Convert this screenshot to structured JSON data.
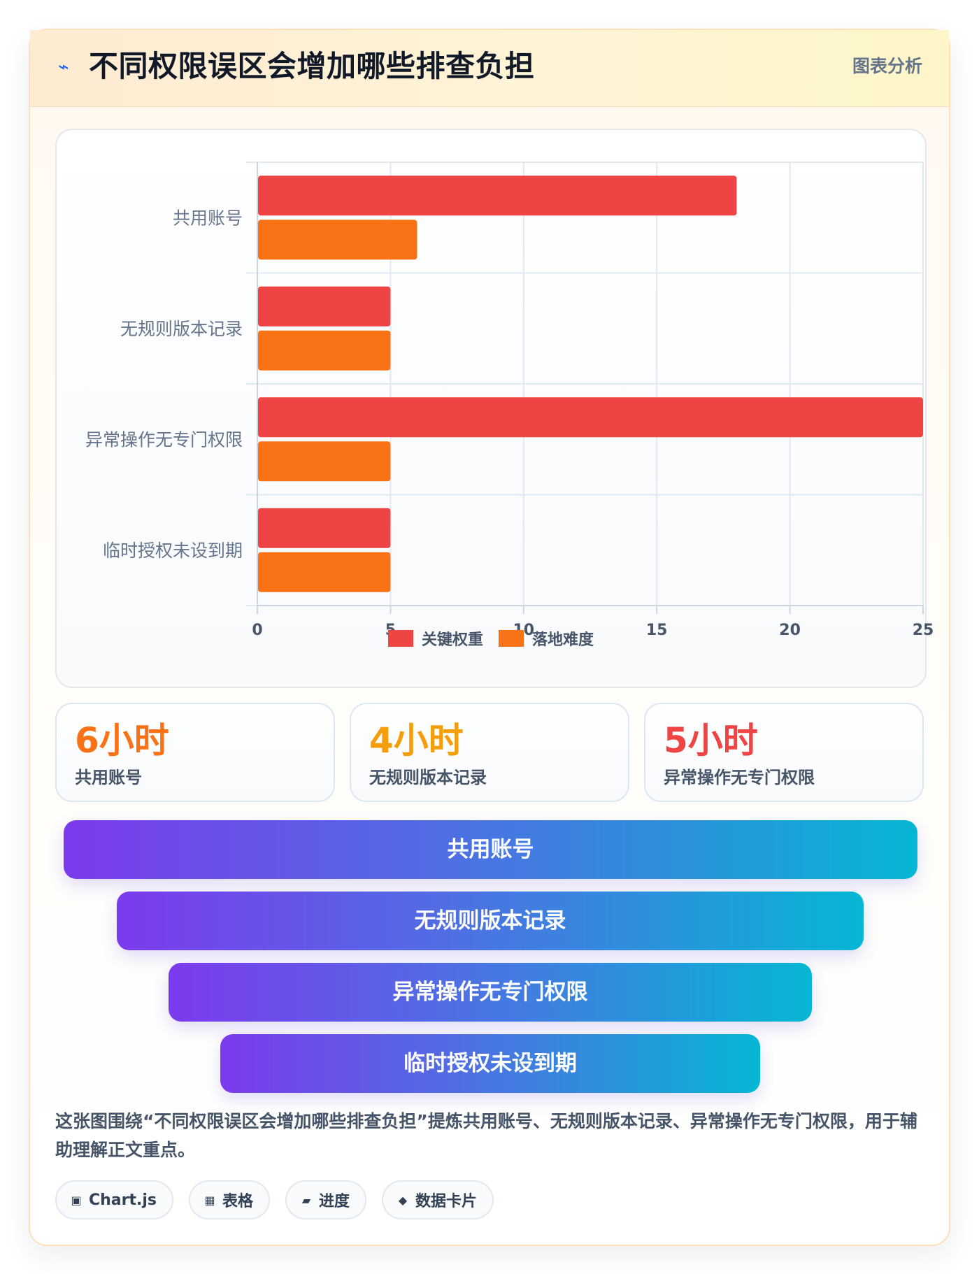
{
  "header": {
    "icon": "lightning-icon",
    "title": "不同权限误区会增加哪些排查负担",
    "badge": "图表分析"
  },
  "colors": {
    "series_1": "#ef4444",
    "series_2": "#f97316",
    "stat_1": "#f97316",
    "stat_2": "#f59e0b",
    "stat_3": "#ef4444",
    "funnel_gradient": [
      "#7c3aed",
      "#06b6d4"
    ]
  },
  "chart_data": {
    "type": "bar",
    "orientation": "horizontal",
    "title": "",
    "xlabel": "",
    "ylabel": "",
    "categories": [
      "共用账号",
      "无规则版本记录",
      "异常操作无专门权限",
      "临时授权未设到期"
    ],
    "series": [
      {
        "name": "关键权重",
        "values": [
          18,
          5,
          25,
          5
        ]
      },
      {
        "name": "落地难度",
        "values": [
          6,
          5,
          5,
          5
        ]
      }
    ],
    "x_ticks": [
      "0",
      "5",
      "10",
      "15",
      "20",
      "25"
    ],
    "xlim": [
      0,
      25
    ],
    "grid": true,
    "legend_position": "bottom"
  },
  "stats": [
    {
      "value": "6小时",
      "label": "共用账号"
    },
    {
      "value": "4小时",
      "label": "无规则版本记录"
    },
    {
      "value": "5小时",
      "label": "异常操作无专门权限"
    }
  ],
  "funnel": [
    "共用账号",
    "无规则版本记录",
    "异常操作无专门权限",
    "临时授权未设到期"
  ],
  "summary": "这张图围绕“不同权限误区会增加哪些排查负担”提炼共用账号、无规则版本记录、异常操作无专门权限，用于辅助理解正文重点。",
  "tags": [
    {
      "icon": "chart-square-icon",
      "label": "Chart.js"
    },
    {
      "icon": "grid-table-icon",
      "label": "表格"
    },
    {
      "icon": "progress-bar-icon",
      "label": "进度"
    },
    {
      "icon": "diamond-card-icon",
      "label": "数据卡片"
    }
  ]
}
